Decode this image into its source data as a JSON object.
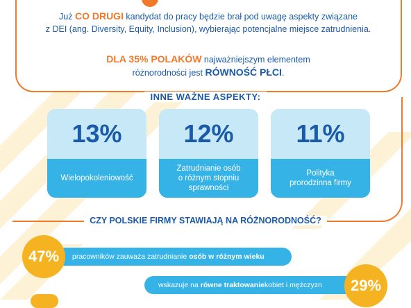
{
  "colors": {
    "orange": "#f07a2a",
    "blue_text": "#1a5aa8",
    "light_blue": "#c7e8f7",
    "mid_blue": "#36b3e6",
    "yellow": "#f5b321",
    "stripe": "#fdf1d6"
  },
  "intro": {
    "l1_pre": "Już ",
    "l1_highlight": "CO DRUGI",
    "l1_post": " kandydat do pracy będzie brał pod uwagę aspekty związane",
    "l2": "z DEI (ang. Diversity, Equity, Inclusion), wybierając potencjalne miejsce zatrudnienia.",
    "l3_highlight": "DLA 35% POLAKÓW",
    "l3_post": " najważniejszym elementem",
    "l4_pre": "różnorodności jest ",
    "l4_bold": "RÓWNOŚĆ PŁCI",
    "l4_post": "."
  },
  "aspects": {
    "title": "INNE WAŻNE ASPEKTY:",
    "cards": [
      {
        "value": "13%",
        "label": "Wielopokoleniowość"
      },
      {
        "value": "12%",
        "label": "Zatrudnianie osób\no różnym stopniu\nsprawności"
      },
      {
        "value": "11%",
        "label": "Polityka\nprorodzinna firmy"
      }
    ]
  },
  "question": {
    "title": "CZY POLSKIE FIRMY STAWIAJĄ NA RÓŻNORODNOŚĆ?",
    "stats": [
      {
        "value": "47%",
        "pre": "pracowników zauważa zatrudnianie ",
        "bold": "osób w różnym wieku",
        "post": ""
      },
      {
        "value": "29%",
        "pre": "wskazuje na ",
        "bold": "równe traktowanie",
        "post": " kobiet i mężczyzn"
      }
    ]
  }
}
